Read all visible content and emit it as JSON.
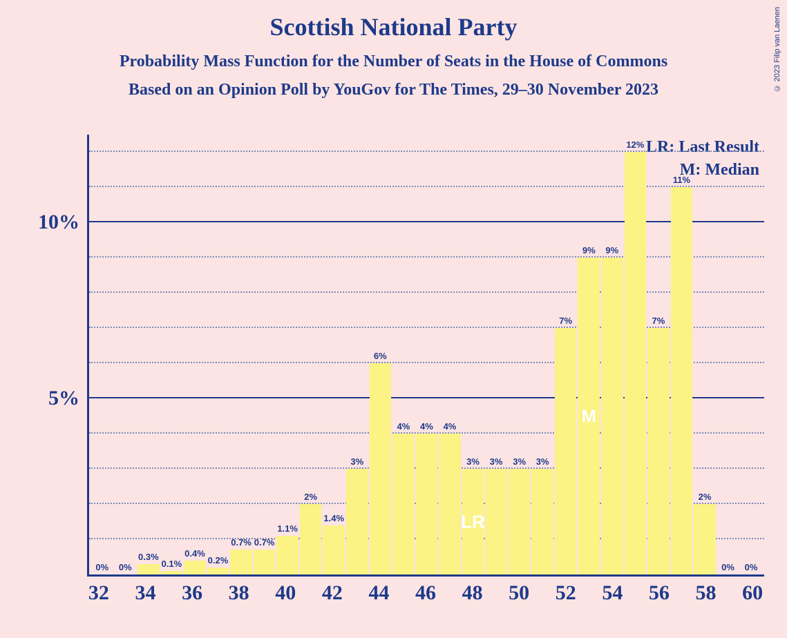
{
  "title": "Scottish National Party",
  "subtitle1": "Probability Mass Function for the Number of Seats in the House of Commons",
  "subtitle2": "Based on an Opinion Poll by YouGov for The Times, 29–30 November 2023",
  "copyright": "© 2023 Filip van Laenen",
  "legend": {
    "lr": "LR: Last Result",
    "m": "M: Median"
  },
  "chart": {
    "type": "bar",
    "bar_color": "#fbf383",
    "background_color": "#fce4e4",
    "axis_color": "#1e3a8a",
    "text_color": "#1e3a8a",
    "marker_text_color": "#ffffff",
    "grid_major_color": "#1e3a8a",
    "grid_minor_color": "#7a8ab5",
    "ymax_percent": 12.5,
    "y_ticks_major": [
      5,
      10
    ],
    "y_ticks_minor": [
      1,
      2,
      3,
      4,
      6,
      7,
      8,
      9,
      11,
      12
    ],
    "x_ticks": [
      32,
      34,
      36,
      38,
      40,
      42,
      44,
      46,
      48,
      50,
      52,
      54,
      56,
      58,
      60
    ],
    "title_fontsize": 36,
    "subtitle_fontsize": 24,
    "axis_label_fontsize": 30,
    "bar_label_fontsize": 13,
    "bars": [
      {
        "x": 32,
        "value": 0,
        "label": "0%"
      },
      {
        "x": 33,
        "value": 0,
        "label": "0%"
      },
      {
        "x": 34,
        "value": 0.3,
        "label": "0.3%"
      },
      {
        "x": 35,
        "value": 0.1,
        "label": "0.1%"
      },
      {
        "x": 36,
        "value": 0.4,
        "label": "0.4%"
      },
      {
        "x": 37,
        "value": 0.2,
        "label": "0.2%"
      },
      {
        "x": 38,
        "value": 0.7,
        "label": "0.7%"
      },
      {
        "x": 39,
        "value": 0.7,
        "label": "0.7%"
      },
      {
        "x": 40,
        "value": 1.1,
        "label": "1.1%"
      },
      {
        "x": 41,
        "value": 2,
        "label": "2%"
      },
      {
        "x": 42,
        "value": 1.4,
        "label": "1.4%"
      },
      {
        "x": 43,
        "value": 3,
        "label": "3%"
      },
      {
        "x": 44,
        "value": 6,
        "label": "6%"
      },
      {
        "x": 45,
        "value": 4,
        "label": "4%"
      },
      {
        "x": 46,
        "value": 4,
        "label": "4%"
      },
      {
        "x": 47,
        "value": 4,
        "label": "4%"
      },
      {
        "x": 48,
        "value": 3,
        "label": "3%",
        "marker": "LR"
      },
      {
        "x": 49,
        "value": 3,
        "label": "3%"
      },
      {
        "x": 50,
        "value": 3,
        "label": "3%"
      },
      {
        "x": 51,
        "value": 3,
        "label": "3%"
      },
      {
        "x": 52,
        "value": 7,
        "label": "7%"
      },
      {
        "x": 53,
        "value": 9,
        "label": "9%",
        "marker": "M"
      },
      {
        "x": 54,
        "value": 9,
        "label": "9%"
      },
      {
        "x": 55,
        "value": 12,
        "label": "12%"
      },
      {
        "x": 56,
        "value": 7,
        "label": "7%"
      },
      {
        "x": 57,
        "value": 11,
        "label": "11%"
      },
      {
        "x": 58,
        "value": 2,
        "label": "2%"
      },
      {
        "x": 59,
        "value": 0,
        "label": "0%"
      },
      {
        "x": 60,
        "value": 0,
        "label": "0%"
      }
    ]
  }
}
